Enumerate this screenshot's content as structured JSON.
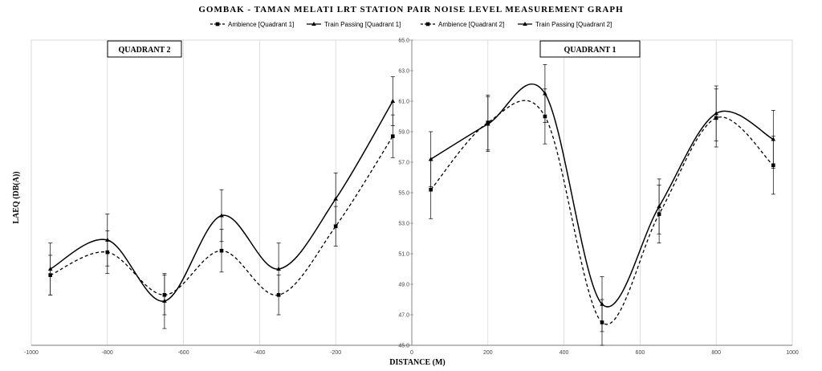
{
  "chart_data": {
    "type": "line",
    "title": "GOMBAK - TAMAN MELATI LRT STATION PAIR NOISE LEVEL MEASUREMENT GRAPH",
    "xlabel": "DISTANCE (M)",
    "ylabel": "LAEQ (DB(A))",
    "xlim": [
      -1000,
      1000
    ],
    "ylim": [
      45.0,
      65.0
    ],
    "x_ticks": [
      "-1000",
      "-800",
      "-600",
      "-400",
      "-200",
      "0",
      "200",
      "400",
      "600",
      "800",
      "1000"
    ],
    "y_ticks": [
      "45.0",
      "47.0",
      "49.0",
      "51.0",
      "53.0",
      "55.0",
      "57.0",
      "59.0",
      "61.0",
      "63.0",
      "65.0"
    ],
    "grid": true,
    "legend_position": "top",
    "quadrant_labels": [
      "QUADRANT 2",
      "QUADRANT 1"
    ],
    "series": [
      {
        "name": "Ambience [Quadrant 1]",
        "style": "dashed",
        "marker": "square",
        "x": [
          50,
          200,
          350,
          500,
          650,
          800,
          950
        ],
        "y": [
          55.2,
          59.6,
          60.0,
          46.5,
          53.6,
          59.9,
          56.8
        ],
        "err": [
          1.9,
          1.8,
          1.8,
          1.5,
          1.9,
          1.9,
          1.9
        ]
      },
      {
        "name": "Train Passing [Quadrant 1]",
        "style": "solid",
        "marker": "triangle",
        "x": [
          50,
          200,
          350,
          500,
          650,
          800,
          950
        ],
        "y": [
          57.2,
          59.5,
          61.5,
          47.7,
          54.1,
          60.2,
          58.5
        ],
        "err": [
          1.8,
          1.8,
          1.9,
          1.8,
          1.8,
          1.8,
          1.9
        ]
      },
      {
        "name": "Ambience [Quadrant 2]",
        "style": "dashed",
        "marker": "square",
        "x": [
          -950,
          -800,
          -650,
          -500,
          -350,
          -200,
          -50
        ],
        "y": [
          49.6,
          51.1,
          48.3,
          51.2,
          48.3,
          52.8,
          58.7
        ],
        "err": [
          1.3,
          1.4,
          1.3,
          1.4,
          1.3,
          1.3,
          1.4
        ]
      },
      {
        "name": "Train Passing  [Quadrant 2]",
        "style": "solid",
        "marker": "triangle",
        "x": [
          -950,
          -800,
          -650,
          -500,
          -350,
          -200,
          -50
        ],
        "y": [
          50.0,
          51.9,
          47.9,
          53.5,
          50.0,
          54.6,
          61.0
        ],
        "err": [
          1.7,
          1.7,
          1.8,
          1.7,
          1.7,
          1.7,
          1.6
        ]
      }
    ]
  }
}
